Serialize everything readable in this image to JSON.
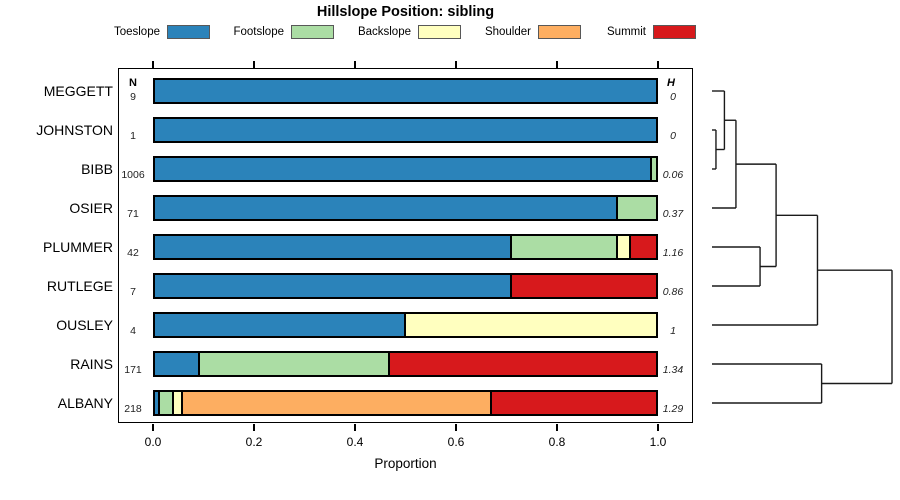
{
  "title": "Hillslope Position: sibling",
  "columns": {
    "n_header": "N",
    "h_header": "H"
  },
  "x_axis": {
    "label": "Proportion",
    "tick_labels": [
      "0.0",
      "0.2",
      "0.4",
      "0.6",
      "0.8",
      "1.0"
    ]
  },
  "chart_data": {
    "type": "bar",
    "orientation": "horizontal",
    "stacked": true,
    "title": "Hillslope Position: sibling",
    "xlabel": "Proportion",
    "xlim": [
      0,
      1
    ],
    "xticks": [
      0.0,
      0.2,
      0.4,
      0.6,
      0.8,
      1.0
    ],
    "grid": false,
    "legend_position": "top",
    "categories": [
      "Toeslope",
      "Footslope",
      "Backslope",
      "Shoulder",
      "Summit"
    ],
    "colors": [
      "#2B83BA",
      "#ABDDA4",
      "#FFFFBF",
      "#FDAE61",
      "#D7191C"
    ],
    "rows": [
      {
        "name": "MEGGETT",
        "N": "9",
        "H": "0",
        "proportions": [
          1,
          0,
          0,
          0,
          0
        ]
      },
      {
        "name": "JOHNSTON",
        "N": "1",
        "H": "0",
        "proportions": [
          1,
          0,
          0,
          0,
          0
        ]
      },
      {
        "name": "BIBB",
        "N": "1006",
        "H": "0.06",
        "proportions": [
          0.988,
          0.012,
          0,
          0,
          0
        ]
      },
      {
        "name": "OSIER",
        "N": "71",
        "H": "0.37",
        "proportions": [
          0.92,
          0.08,
          0,
          0,
          0
        ]
      },
      {
        "name": "PLUMMER",
        "N": "42",
        "H": "1.16",
        "proportions": [
          0.71,
          0.21,
          0.026,
          0,
          0.054
        ]
      },
      {
        "name": "RUTLEGE",
        "N": "7",
        "H": "0.86",
        "proportions": [
          0.71,
          0,
          0,
          0,
          0.29
        ]
      },
      {
        "name": "OUSLEY",
        "N": "4",
        "H": "1",
        "proportions": [
          0.5,
          0,
          0.5,
          0,
          0
        ]
      },
      {
        "name": "RAINS",
        "N": "171",
        "H": "1.34",
        "proportions": [
          0.094,
          0.375,
          0,
          0,
          0.531
        ]
      },
      {
        "name": "ALBANY",
        "N": "218",
        "H": "1.29",
        "proportions": [
          0.014,
          0.028,
          0.018,
          0.611,
          0.329
        ]
      }
    ],
    "dendrogram": {
      "leaves": [
        "MEGGETT",
        "JOHNSTON",
        "BIBB",
        "OSIER",
        "PLUMMER",
        "RUTLEGE",
        "OUSLEY",
        "RAINS",
        "ALBANY"
      ],
      "merges": [
        {
          "children": [
            "L1",
            "L2"
          ],
          "h": 0.022
        },
        {
          "children": [
            "L0",
            "M0"
          ],
          "h": 0.069
        },
        {
          "children": [
            "M1",
            "L3"
          ],
          "h": 0.133
        },
        {
          "children": [
            "L4",
            "L5"
          ],
          "h": 0.267
        },
        {
          "children": [
            "M2",
            "M3"
          ],
          "h": 0.356
        },
        {
          "children": [
            "M4",
            "L6"
          ],
          "h": 0.586
        },
        {
          "children": [
            "L7",
            "L8"
          ],
          "h": 0.609
        },
        {
          "children": [
            "M5",
            "M6"
          ],
          "h": 1.0
        }
      ]
    }
  }
}
